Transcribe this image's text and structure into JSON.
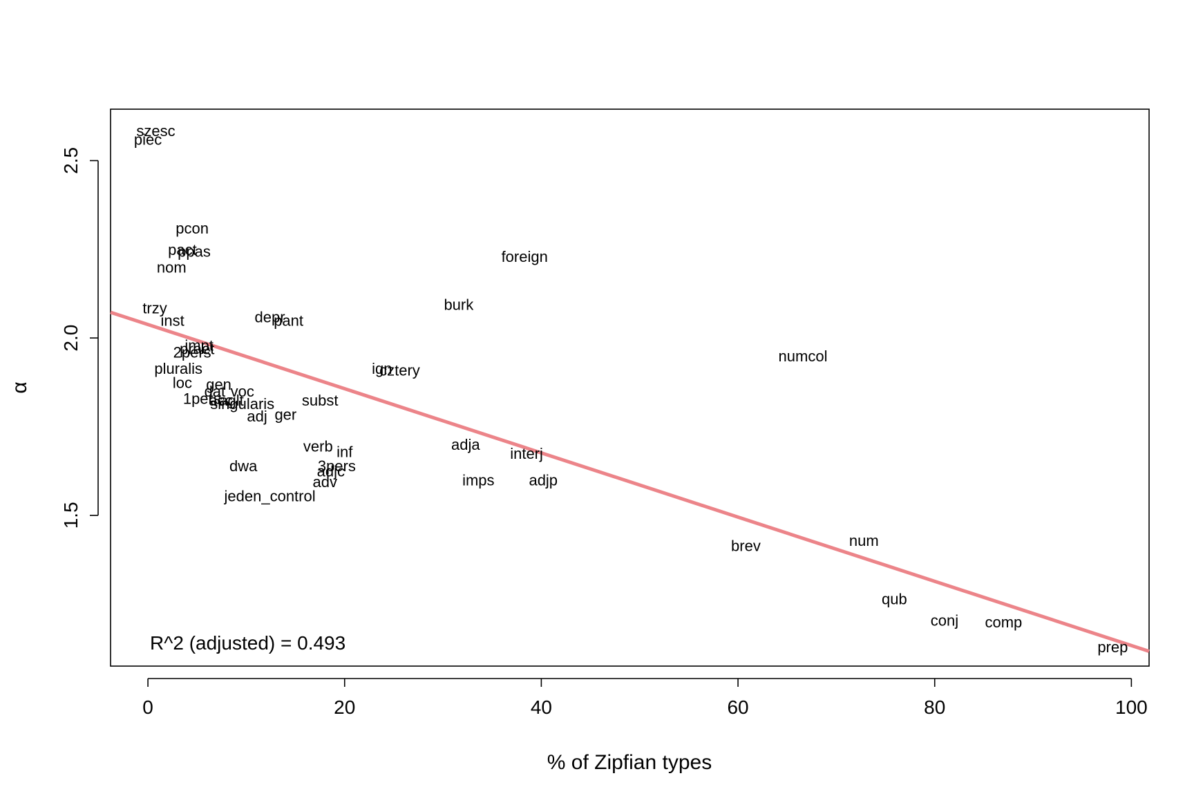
{
  "chart_data": {
    "type": "scatter",
    "xlabel": "% of Zipfian types",
    "ylabel": "α",
    "xlim": [
      -3.8,
      101.8
    ],
    "ylim": [
      1.075,
      2.645
    ],
    "x_ticks": [
      0,
      20,
      40,
      60,
      80,
      100
    ],
    "y_ticks": [
      1.5,
      2.0,
      2.5
    ],
    "x_tick_labels": [
      "0",
      "20",
      "40",
      "60",
      "80",
      "100"
    ],
    "y_tick_labels": [
      "1.5",
      "2.0",
      "2.5"
    ],
    "grid": false,
    "points": [
      {
        "label": "szesc",
        "x": 0.8,
        "y": 2.585
      },
      {
        "label": "piec",
        "x": 0.0,
        "y": 2.56
      },
      {
        "label": "pcon",
        "x": 4.5,
        "y": 2.31
      },
      {
        "label": "pact",
        "x": 3.5,
        "y": 2.25
      },
      {
        "label": "ppas",
        "x": 4.7,
        "y": 2.245
      },
      {
        "label": "nom",
        "x": 2.4,
        "y": 2.2
      },
      {
        "label": "foreign",
        "x": 38.3,
        "y": 2.23
      },
      {
        "label": "trzy",
        "x": 0.7,
        "y": 2.085
      },
      {
        "label": "inst",
        "x": 2.5,
        "y": 2.05
      },
      {
        "label": "depr",
        "x": 12.4,
        "y": 2.06
      },
      {
        "label": "pant",
        "x": 14.3,
        "y": 2.05
      },
      {
        "label": "burk",
        "x": 31.6,
        "y": 2.095
      },
      {
        "label": "impt",
        "x": 5.2,
        "y": 1.98
      },
      {
        "label": "praet",
        "x": 5.0,
        "y": 1.97
      },
      {
        "label": "2pers",
        "x": 4.5,
        "y": 1.96
      },
      {
        "label": "numcol",
        "x": 66.6,
        "y": 1.95
      },
      {
        "label": "ign",
        "x": 23.8,
        "y": 1.915
      },
      {
        "label": "cztery",
        "x": 25.6,
        "y": 1.91
      },
      {
        "label": "pluralis",
        "x": 3.1,
        "y": 1.915
      },
      {
        "label": "loc",
        "x": 3.5,
        "y": 1.875
      },
      {
        "label": "gen",
        "x": 7.2,
        "y": 1.87
      },
      {
        "label": "dat",
        "x": 6.8,
        "y": 1.85
      },
      {
        "label": "voc",
        "x": 9.6,
        "y": 1.85
      },
      {
        "label": "1pers",
        "x": 5.5,
        "y": 1.83
      },
      {
        "label": "acc",
        "x": 7.4,
        "y": 1.825
      },
      {
        "label": "aglt",
        "x": 8.5,
        "y": 1.825
      },
      {
        "label": "singularis",
        "x": 9.6,
        "y": 1.815
      },
      {
        "label": "subst",
        "x": 17.5,
        "y": 1.825
      },
      {
        "label": "adj",
        "x": 11.1,
        "y": 1.78
      },
      {
        "label": "ger",
        "x": 14.0,
        "y": 1.785
      },
      {
        "label": "verb",
        "x": 17.3,
        "y": 1.695
      },
      {
        "label": "inf",
        "x": 20.0,
        "y": 1.68
      },
      {
        "label": "adja",
        "x": 32.3,
        "y": 1.7
      },
      {
        "label": "interj",
        "x": 38.5,
        "y": 1.675
      },
      {
        "label": "dwa",
        "x": 9.7,
        "y": 1.64
      },
      {
        "label": "3pers",
        "x": 19.2,
        "y": 1.64
      },
      {
        "label": "adjc",
        "x": 18.6,
        "y": 1.625
      },
      {
        "label": "adv",
        "x": 18.0,
        "y": 1.595
      },
      {
        "label": "imps",
        "x": 33.6,
        "y": 1.6
      },
      {
        "label": "adjp",
        "x": 40.2,
        "y": 1.6
      },
      {
        "label": "jeden_control",
        "x": 12.4,
        "y": 1.555
      },
      {
        "label": "brev",
        "x": 60.8,
        "y": 1.415
      },
      {
        "label": "num",
        "x": 72.8,
        "y": 1.43
      },
      {
        "label": "qub",
        "x": 75.9,
        "y": 1.265
      },
      {
        "label": "conj",
        "x": 81.0,
        "y": 1.205
      },
      {
        "label": "comp",
        "x": 87.0,
        "y": 1.2
      },
      {
        "label": "prep",
        "x": 98.1,
        "y": 1.13
      }
    ],
    "regression": {
      "intercept": 2.038,
      "slope": -0.00905,
      "color": "#ec8489"
    },
    "annotation": "R^2 (adjusted) = 0.493"
  }
}
